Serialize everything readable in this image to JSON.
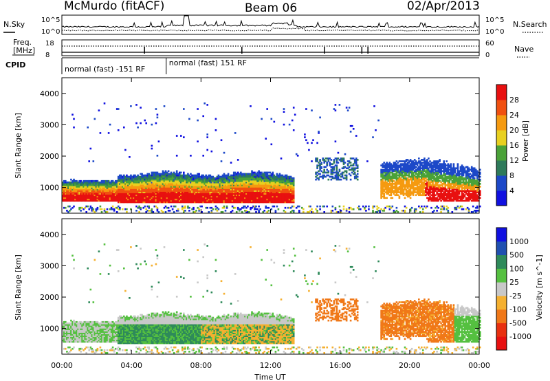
{
  "header": {
    "station": "McMurdo (fitACF)",
    "beam": "Beam 06",
    "date": "02/Apr/2013"
  },
  "noise_panel": {
    "left_label": "N.Sky",
    "right_label": "N.Search",
    "left_ticks": [
      "10^5",
      "10^0"
    ],
    "right_ticks": [
      "10^5",
      "10^0"
    ]
  },
  "freq_panel": {
    "left_label_1": "Freq.",
    "left_label_2": "[MHz]",
    "right_label": "Nave",
    "left_ticks": [
      "18",
      "8"
    ],
    "right_ticks": [
      "60",
      "0"
    ]
  },
  "cpid_panel": {
    "label": "CPID",
    "segments": [
      {
        "label": "normal (fast) -151 RF",
        "start_hour": 0.0,
        "end_hour": 6.0
      },
      {
        "label": "normal (fast) 151 RF",
        "start_hour": 6.0,
        "end_hour": 24.0
      }
    ]
  },
  "chart_data": [
    {
      "type": "heatmap",
      "name": "power",
      "ylabel": "Slant Range [km]",
      "ylim": [
        180,
        4500
      ],
      "yticks": [
        1000,
        2000,
        3000,
        4000
      ],
      "xlim": [
        0,
        24
      ],
      "colorbar": {
        "label": "Power [dB]",
        "range": [
          0,
          32
        ],
        "ticks": [
          "4",
          "8",
          "12",
          "16",
          "20",
          "24",
          "28"
        ],
        "colors": [
          "#1010e0",
          "#1c48c8",
          "#2e7a5a",
          "#4aa238",
          "#e8d020",
          "#f59a10",
          "#f05010",
          "#e81010"
        ]
      },
      "features": [
        {
          "range_km": [
            500,
            900
          ],
          "hours": [
            0,
            13.2
          ],
          "level_db": 28
        },
        {
          "range_km": [
            800,
            1400
          ],
          "hours": [
            0,
            13.2
          ],
          "level_db": 16
        },
        {
          "range_km": [
            500,
            1300
          ],
          "hours": [
            18.5,
            24
          ],
          "level_db": 24
        }
      ]
    },
    {
      "type": "heatmap",
      "name": "velocity",
      "ylabel": "Slant Range [km]",
      "xlabel": "Time UT",
      "ylim": [
        180,
        4500
      ],
      "yticks": [
        1000,
        2000,
        3000,
        4000
      ],
      "xlim": [
        0,
        24
      ],
      "xticks": [
        "00:00",
        "04:00",
        "08:00",
        "12:00",
        "16:00",
        "20:00",
        "00:00"
      ],
      "colorbar": {
        "label": "Velocity [m s^-1]",
        "ticks": [
          "1000",
          "500",
          "100",
          "25",
          "-25",
          "-100",
          "-500",
          "-1000"
        ],
        "colors": [
          "#1010e0",
          "#2050b0",
          "#2e8a5a",
          "#55c040",
          "#c8c8c8",
          "#f5b030",
          "#f07818",
          "#e83010",
          "#e81010"
        ]
      },
      "features": [
        {
          "range_km": [
            500,
            1400
          ],
          "hours": [
            3.2,
            8.0
          ],
          "velocity_class": "100 to 500"
        },
        {
          "range_km": [
            600,
            1300
          ],
          "hours": [
            8.0,
            13.0
          ],
          "velocity_class": "-25 to -100"
        },
        {
          "range_km": [
            1200,
            1900
          ],
          "hours": [
            14.5,
            17.0
          ],
          "velocity_class": "-100 to -500"
        },
        {
          "range_km": [
            600,
            1900
          ],
          "hours": [
            18.5,
            22.5
          ],
          "velocity_class": "-100 to -500"
        }
      ]
    }
  ]
}
